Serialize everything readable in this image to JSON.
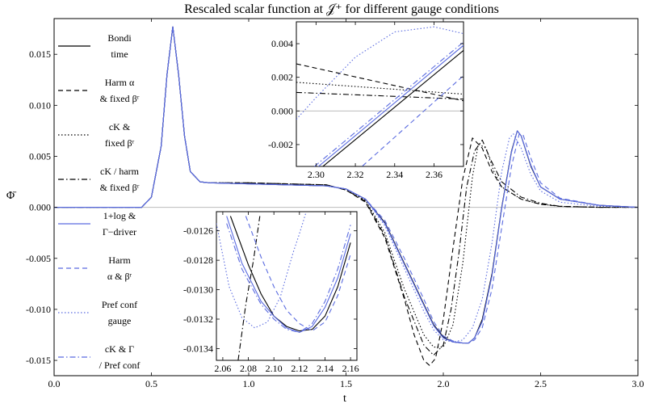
{
  "title": "Rescaled scalar function at 𝒥⁺ for different gauge conditions",
  "chart_data": {
    "type": "line",
    "title": "Rescaled scalar function at 𝒥⁺ for different gauge conditions",
    "xlabel": "t",
    "ylabel": "Φ̄",
    "xlim": [
      0,
      3
    ],
    "ylim": [
      -0.0165,
      0.0185
    ],
    "xticks": [
      "0.0",
      "0.5",
      "1.0",
      "1.5",
      "2.0",
      "2.5",
      "3.0"
    ],
    "yticks": [
      "0.015",
      "0.010",
      "0.005",
      "0.000",
      "-0.005",
      "-0.010",
      "-0.015"
    ],
    "legend_position": "left",
    "series": [
      {
        "name": "Bondi time",
        "color": "#000000",
        "dash": "solid",
        "x": [
          0,
          0.45,
          0.5,
          0.55,
          0.58,
          0.61,
          0.64,
          0.67,
          0.7,
          0.75,
          0.8,
          1.0,
          1.2,
          1.4,
          1.5,
          1.6,
          1.7,
          1.8,
          1.9,
          1.95,
          2.0,
          2.05,
          2.1,
          2.13,
          2.16,
          2.2,
          2.25,
          2.3,
          2.35,
          2.38,
          2.4,
          2.45,
          2.5,
          2.6,
          2.8,
          3.0
        ],
        "y": [
          0,
          0,
          0.001,
          0.006,
          0.013,
          0.0177,
          0.013,
          0.007,
          0.0035,
          0.0025,
          0.0024,
          0.0023,
          0.0022,
          0.0021,
          0.0018,
          0.0008,
          -0.0015,
          -0.0055,
          -0.0095,
          -0.0115,
          -0.0127,
          -0.0132,
          -0.0133,
          -0.0133,
          -0.0128,
          -0.011,
          -0.0065,
          0.0,
          0.0055,
          0.0075,
          0.007,
          0.004,
          0.002,
          0.0008,
          0.0002,
          0.0
        ]
      },
      {
        "name": "Harm α & fixed β^r",
        "color": "#000000",
        "dash": "dashed",
        "x": [
          0,
          0.45,
          0.5,
          0.55,
          0.58,
          0.61,
          0.64,
          0.67,
          0.7,
          0.75,
          0.8,
          1.0,
          1.2,
          1.4,
          1.5,
          1.6,
          1.7,
          1.8,
          1.85,
          1.9,
          1.93,
          1.96,
          2.0,
          2.05,
          2.1,
          2.15,
          2.2,
          2.25,
          2.3,
          2.4,
          2.5,
          2.6,
          2.8,
          3.0
        ],
        "y": [
          0,
          0,
          0.001,
          0.006,
          0.013,
          0.0177,
          0.013,
          0.007,
          0.0035,
          0.0025,
          0.0024,
          0.0024,
          0.0023,
          0.0022,
          0.0017,
          0.0005,
          -0.003,
          -0.009,
          -0.0125,
          -0.015,
          -0.0155,
          -0.0148,
          -0.011,
          -0.004,
          0.0028,
          0.0068,
          0.0058,
          0.0035,
          0.002,
          0.0008,
          0.0003,
          0.0001,
          0.0,
          0.0
        ]
      },
      {
        "name": "cK & fixed β^r",
        "color": "#000000",
        "dash": "dotted",
        "x": [
          0,
          0.45,
          0.5,
          0.55,
          0.58,
          0.61,
          0.64,
          0.67,
          0.7,
          0.75,
          0.8,
          1.0,
          1.2,
          1.4,
          1.5,
          1.6,
          1.7,
          1.8,
          1.9,
          1.95,
          2.0,
          2.05,
          2.1,
          2.15,
          2.18,
          2.22,
          2.26,
          2.3,
          2.4,
          2.5,
          2.6,
          2.8,
          3.0
        ],
        "y": [
          0,
          0,
          0.001,
          0.006,
          0.013,
          0.0177,
          0.013,
          0.007,
          0.0035,
          0.0025,
          0.0024,
          0.0024,
          0.0023,
          0.0022,
          0.0017,
          0.0007,
          -0.0025,
          -0.008,
          -0.0125,
          -0.0137,
          -0.0137,
          -0.0115,
          -0.0055,
          0.003,
          0.0062,
          0.0058,
          0.0035,
          0.002,
          0.0008,
          0.0003,
          0.0001,
          0.0,
          0.0
        ]
      },
      {
        "name": "cK / harm & fixed β^r",
        "color": "#000000",
        "dash": "dashdot",
        "x": [
          0,
          0.45,
          0.5,
          0.55,
          0.58,
          0.61,
          0.64,
          0.67,
          0.7,
          0.75,
          0.8,
          1.0,
          1.2,
          1.4,
          1.5,
          1.6,
          1.7,
          1.8,
          1.9,
          1.95,
          2.0,
          2.04,
          2.08,
          2.12,
          2.16,
          2.2,
          2.24,
          2.3,
          2.4,
          2.5,
          2.6,
          2.8,
          3.0
        ],
        "y": [
          0,
          0,
          0.001,
          0.006,
          0.013,
          0.0177,
          0.013,
          0.007,
          0.0035,
          0.0025,
          0.0024,
          0.0024,
          0.0023,
          0.0022,
          0.0017,
          0.0006,
          -0.0028,
          -0.0088,
          -0.0135,
          -0.0145,
          -0.0135,
          -0.01,
          -0.0045,
          0.002,
          0.0055,
          0.0066,
          0.0048,
          0.0025,
          0.001,
          0.0004,
          0.0001,
          0.0,
          0.0
        ]
      },
      {
        "name": "1+log & Γ−driver",
        "color": "#5a6be0",
        "dash": "solid",
        "x": [
          0,
          0.45,
          0.5,
          0.55,
          0.58,
          0.61,
          0.64,
          0.67,
          0.7,
          0.75,
          0.8,
          1.0,
          1.2,
          1.4,
          1.5,
          1.6,
          1.7,
          1.8,
          1.9,
          1.95,
          2.0,
          2.05,
          2.1,
          2.13,
          2.16,
          2.2,
          2.25,
          2.3,
          2.35,
          2.38,
          2.4,
          2.45,
          2.5,
          2.6,
          2.8,
          3.0
        ],
        "y": [
          0,
          0,
          0.001,
          0.006,
          0.013,
          0.0177,
          0.013,
          0.007,
          0.0035,
          0.0025,
          0.0024,
          0.0023,
          0.0022,
          0.0021,
          0.0018,
          0.0008,
          -0.0016,
          -0.0056,
          -0.0096,
          -0.0116,
          -0.0128,
          -0.0132,
          -0.0133,
          -0.0133,
          -0.0128,
          -0.0112,
          -0.0067,
          -0.0001,
          0.0054,
          0.0075,
          0.007,
          0.0041,
          0.002,
          0.0008,
          0.0002,
          0.0
        ]
      },
      {
        "name": "Harm α & β^r",
        "color": "#5a6be0",
        "dash": "dashed",
        "x": [
          0,
          0.45,
          0.5,
          0.55,
          0.58,
          0.61,
          0.64,
          0.67,
          0.7,
          0.75,
          0.8,
          1.0,
          1.2,
          1.4,
          1.5,
          1.6,
          1.7,
          1.8,
          1.9,
          1.95,
          2.0,
          2.05,
          2.1,
          2.13,
          2.16,
          2.2,
          2.25,
          2.3,
          2.35,
          2.39,
          2.41,
          2.45,
          2.5,
          2.6,
          2.8,
          3.0
        ],
        "y": [
          0,
          0,
          0.001,
          0.006,
          0.013,
          0.0177,
          0.013,
          0.007,
          0.0035,
          0.0025,
          0.0024,
          0.0023,
          0.0022,
          0.0021,
          0.0018,
          0.0008,
          -0.0013,
          -0.005,
          -0.009,
          -0.0112,
          -0.0126,
          -0.0131,
          -0.0133,
          -0.0133,
          -0.013,
          -0.0118,
          -0.008,
          -0.002,
          0.004,
          0.0072,
          0.0071,
          0.0048,
          0.0024,
          0.0009,
          0.0002,
          0.0
        ]
      },
      {
        "name": "Pref conf gauge",
        "color": "#5a6be0",
        "dash": "dotted",
        "x": [
          0,
          0.45,
          0.5,
          0.55,
          0.58,
          0.61,
          0.64,
          0.67,
          0.7,
          0.75,
          0.8,
          1.0,
          1.2,
          1.4,
          1.5,
          1.6,
          1.7,
          1.8,
          1.9,
          1.95,
          2.0,
          2.05,
          2.1,
          2.15,
          2.2,
          2.25,
          2.3,
          2.34,
          2.36,
          2.4,
          2.45,
          2.5,
          2.6,
          2.8,
          3.0
        ],
        "y": [
          0,
          0,
          0.001,
          0.006,
          0.013,
          0.0177,
          0.013,
          0.007,
          0.0035,
          0.0025,
          0.0024,
          0.0023,
          0.0022,
          0.0021,
          0.0018,
          0.0008,
          -0.0018,
          -0.006,
          -0.0102,
          -0.012,
          -0.013,
          -0.0132,
          -0.013,
          -0.0118,
          -0.009,
          -0.0035,
          0.0035,
          0.0068,
          0.0072,
          0.0058,
          0.0032,
          0.0016,
          0.0005,
          0.0001,
          0.0
        ]
      },
      {
        "name": "cK & Γ / Pref conf",
        "color": "#5a6be0",
        "dash": "dashdot",
        "x": [
          0,
          0.45,
          0.5,
          0.55,
          0.58,
          0.61,
          0.64,
          0.67,
          0.7,
          0.75,
          0.8,
          1.0,
          1.2,
          1.4,
          1.5,
          1.6,
          1.7,
          1.8,
          1.9,
          1.95,
          2.0,
          2.05,
          2.1,
          2.13,
          2.16,
          2.2,
          2.25,
          2.3,
          2.35,
          2.38,
          2.4,
          2.45,
          2.5,
          2.6,
          2.8,
          3.0
        ],
        "y": [
          0,
          0,
          0.001,
          0.006,
          0.013,
          0.0177,
          0.013,
          0.007,
          0.0035,
          0.0025,
          0.0024,
          0.0023,
          0.0022,
          0.0021,
          0.0018,
          0.0008,
          -0.0016,
          -0.0056,
          -0.0096,
          -0.0116,
          -0.0128,
          -0.0132,
          -0.0133,
          -0.0133,
          -0.0128,
          -0.0112,
          -0.0067,
          -0.0001,
          0.0054,
          0.0075,
          0.007,
          0.0041,
          0.002,
          0.0008,
          0.0002,
          0.0
        ]
      }
    ],
    "legend_labels": [
      [
        "Bondi",
        "time"
      ],
      [
        "Harm α",
        "& fixed βʳ"
      ],
      [
        "cK &",
        "fixed βʳ"
      ],
      [
        "cK / harm",
        "& fixed βʳ"
      ],
      [
        "1+log &",
        "Γ−driver"
      ],
      [
        "Harm",
        "α & βʳ"
      ],
      [
        "Pref conf",
        "gauge"
      ],
      [
        "cK & Γ",
        "/ Pref conf"
      ]
    ],
    "insets": [
      {
        "xlim": [
          2.29,
          2.375
        ],
        "ylim": [
          -0.0033,
          0.0053
        ],
        "xticks": [
          2.3,
          2.32,
          2.34,
          2.36
        ],
        "xticklabels": [
          "2.30",
          "2.32",
          "2.34",
          "2.36"
        ],
        "yticks": [
          0.004,
          0.002,
          0.0,
          -0.002
        ],
        "yticklabels": [
          "0.004",
          "0.002",
          "0.000",
          "-0.002"
        ],
        "series": [
          {
            "ref": 0,
            "x": [
              2.29,
              2.375
            ],
            "y": [
              -0.0046,
              0.0036
            ]
          },
          {
            "ref": 1,
            "x": [
              2.29,
              2.375
            ],
            "y": [
              0.0028,
              0.0006
            ]
          },
          {
            "ref": 2,
            "x": [
              2.29,
              2.375
            ],
            "y": [
              0.0017,
              0.001
            ]
          },
          {
            "ref": 3,
            "x": [
              2.29,
              2.375
            ],
            "y": [
              0.0011,
              0.0007
            ]
          },
          {
            "ref": 4,
            "x": [
              2.29,
              2.375
            ],
            "y": [
              -0.0044,
              0.0039
            ]
          },
          {
            "ref": 5,
            "x": [
              2.29,
              2.375
            ],
            "y": [
              -0.0068,
              0.0021
            ]
          },
          {
            "ref": 6,
            "x": [
              2.29,
              2.3,
              2.32,
              2.34,
              2.36,
              2.375
            ],
            "y": [
              -0.0005,
              0.0008,
              0.0032,
              0.0047,
              0.005,
              0.0046
            ]
          },
          {
            "ref": 7,
            "x": [
              2.29,
              2.375
            ],
            "y": [
              -0.0042,
              0.0041
            ]
          }
        ]
      },
      {
        "xlim": [
          2.055,
          2.165
        ],
        "ylim": [
          -0.01348,
          -0.01247
        ],
        "xticks": [
          2.06,
          2.08,
          2.1,
          2.12,
          2.14,
          2.16
        ],
        "xticklabels": [
          "2.06",
          "2.08",
          "2.10",
          "2.12",
          "2.14",
          "2.16"
        ],
        "yticks": [
          -0.0126,
          -0.0128,
          -0.013,
          -0.0132,
          -0.0134
        ],
        "yticklabels": [
          "-0.0126",
          "-0.0128",
          "-0.0130",
          "-0.0132",
          "-0.0134"
        ],
        "series": [
          {
            "ref": 0,
            "x": [
              2.066,
              2.08,
              2.09,
              2.1,
              2.11,
              2.12,
              2.13,
              2.14,
              2.15,
              2.16
            ],
            "y": [
              -0.0125,
              -0.01283,
              -0.01303,
              -0.01318,
              -0.01325,
              -0.01328,
              -0.01327,
              -0.01318,
              -0.01298,
              -0.01268
            ]
          },
          {
            "ref": 3,
            "x": [
              2.072,
              2.078,
              2.084,
              2.089
            ],
            "y": [
              -0.01348,
              -0.0131,
              -0.0128,
              -0.0125
            ]
          },
          {
            "ref": 4,
            "x": [
              2.063,
              2.075,
              2.09,
              2.1,
              2.11,
              2.12,
              2.13,
              2.14,
              2.15,
              2.16
            ],
            "y": [
              -0.0125,
              -0.01282,
              -0.01308,
              -0.01318,
              -0.01326,
              -0.01329,
              -0.01325,
              -0.01312,
              -0.01292,
              -0.01262
            ]
          },
          {
            "ref": 5,
            "x": [
              2.078,
              2.09,
              2.1,
              2.11,
              2.12,
              2.13,
              2.14,
              2.15,
              2.16
            ],
            "y": [
              -0.0125,
              -0.01278,
              -0.01298,
              -0.01314,
              -0.01323,
              -0.01328,
              -0.01322,
              -0.01304,
              -0.01276
            ]
          },
          {
            "ref": 6,
            "x": [
              2.055,
              2.065,
              2.075,
              2.085,
              2.095,
              2.105,
              2.115,
              2.12,
              2.125
            ],
            "y": [
              -0.01255,
              -0.01298,
              -0.01319,
              -0.01326,
              -0.01322,
              -0.01305,
              -0.01275,
              -0.01262,
              -0.01248
            ]
          },
          {
            "ref": 7,
            "x": [
              2.063,
              2.075,
              2.09,
              2.1,
              2.11,
              2.12,
              2.13,
              2.14,
              2.15,
              2.16
            ],
            "y": [
              -0.01255,
              -0.01286,
              -0.0131,
              -0.0132,
              -0.01327,
              -0.01329,
              -0.01323,
              -0.01308,
              -0.01286,
              -0.01256
            ]
          }
        ]
      }
    ]
  }
}
